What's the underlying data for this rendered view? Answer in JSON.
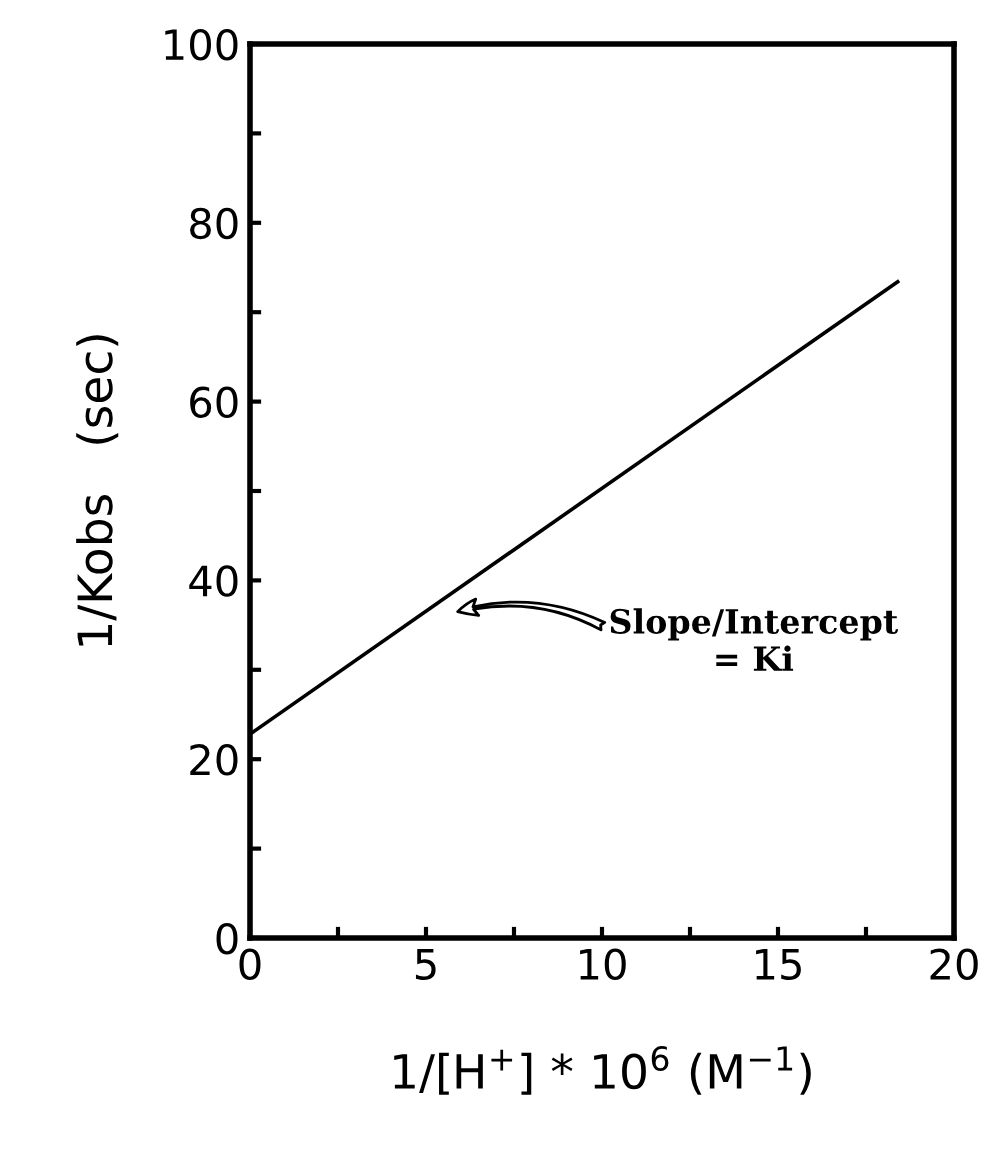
{
  "chart_data": {
    "type": "line",
    "x": [
      0,
      18.4
    ],
    "series": [
      {
        "color": "#000000",
        "values": [
          22.8,
          73.4
        ]
      }
    ],
    "xlim": [
      0,
      20
    ],
    "ylim": [
      0,
      100
    ],
    "xticks": [
      0,
      {
        "value": 2.5,
        "label": null
      },
      5,
      {
        "value": 7.5,
        "label": null
      },
      10,
      {
        "value": 12.5,
        "label": null
      },
      15,
      {
        "value": 17.5,
        "label": null
      },
      20
    ],
    "yticks": [
      0,
      {
        "value": 10,
        "label": null
      },
      20,
      {
        "value": 30,
        "label": null
      },
      40,
      {
        "value": 50,
        "label": null
      },
      60,
      {
        "value": 70,
        "label": null
      },
      80,
      {
        "value": 90,
        "label": null
      },
      100
    ],
    "xlabel": "1/[H$^{+}$] * 10$^{6}$ (M$^{−1}$)",
    "ylabel": "1/Kobs   (sec)",
    "annotations": [
      "Slope/Intercept\n= Ki"
    ],
    "grid": false,
    "marker": "none",
    "line_style": "solid"
  }
}
